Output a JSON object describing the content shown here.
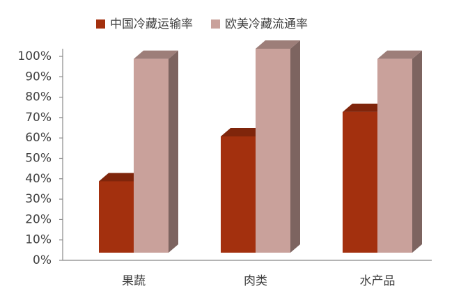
{
  "chart_data": {
    "type": "bar3d",
    "categories": [
      "果蔬",
      "肉类",
      "水产品"
    ],
    "series": [
      {
        "name": "中国冷藏运输率",
        "color": "#a3300e",
        "values": [
          35,
          57,
          69
        ]
      },
      {
        "name": "欧美冷藏流通率",
        "color": "#c9a19b",
        "values": [
          95,
          100,
          95
        ]
      }
    ],
    "ylim": [
      0,
      100
    ],
    "yticks": [
      {
        "value": 0,
        "label": "0%"
      },
      {
        "value": 10,
        "label": "10%"
      },
      {
        "value": 20,
        "label": "20%"
      },
      {
        "value": 30,
        "label": "30%"
      },
      {
        "value": 40,
        "label": "40%"
      },
      {
        "value": 50,
        "label": "50%"
      },
      {
        "value": 60,
        "label": "60%"
      },
      {
        "value": 70,
        "label": "70%"
      },
      {
        "value": 80,
        "label": "80%"
      },
      {
        "value": 90,
        "label": "90%"
      },
      {
        "value": 100,
        "label": "100%"
      }
    ],
    "legend": "top"
  }
}
